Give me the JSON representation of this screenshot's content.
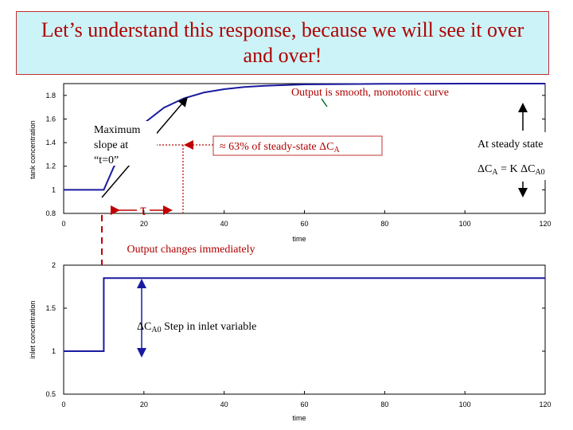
{
  "slide": {
    "title": "Let’s understand this response, because we will see it over and over!"
  },
  "chart_data": [
    {
      "type": "line",
      "xlabel": "time",
      "ylabel": "tank concentration",
      "xlim": [
        0,
        120
      ],
      "ylim": [
        0.8,
        1.9
      ],
      "xticks": [
        "0",
        "20",
        "40",
        "60",
        "80",
        "100",
        "120"
      ],
      "yticks": [
        "0.8",
        "1",
        "1.2",
        "1.4",
        "1.6",
        "1.8"
      ],
      "grid": false,
      "series": [
        {
          "x": [
            0,
            10,
            12.5,
            15,
            20,
            25,
            30,
            35,
            40,
            45,
            50,
            60,
            70,
            80,
            90,
            100,
            110,
            120
          ],
          "y": [
            1.0,
            1.0,
            1.194,
            1.345,
            1.564,
            1.696,
            1.776,
            1.825,
            1.853,
            1.871,
            1.882,
            1.893,
            1.896,
            1.898,
            1.899,
            1.9,
            1.9,
            1.9
          ]
        }
      ],
      "annotations": {
        "smooth": "Output is smooth, monotonic curve",
        "max_slope_1": "Maximum",
        "max_slope_2": "slope at",
        "max_slope_3": "“t=0”",
        "pct63_pre": "≈ 63% of steady-state ",
        "pct63_delta": "ΔC",
        "pct63_sub": "A",
        "steady_1": "At steady state",
        "steady_2_pre": "ΔC",
        "steady_2_sub1": "A",
        "steady_2_mid": " = K ΔC",
        "steady_2_sub2": "A0",
        "tau": "τ",
        "immediate": "Output changes immediately"
      }
    },
    {
      "type": "line",
      "xlabel": "time",
      "ylabel": "inlet concentration",
      "xlim": [
        0,
        120
      ],
      "ylim": [
        0.5,
        2
      ],
      "xticks": [
        "0",
        "20",
        "40",
        "60",
        "80",
        "100",
        "120"
      ],
      "yticks": [
        "0.5",
        "1",
        "1.5",
        "2"
      ],
      "grid": false,
      "series": [
        {
          "x": [
            0,
            10,
            10,
            120
          ],
          "y": [
            1.0,
            1.0,
            1.85,
            1.85
          ]
        }
      ],
      "annotations": {
        "step_pre": "ΔC",
        "step_sub": "A0",
        "step_post": " Step in inlet variable"
      }
    }
  ],
  "colors": {
    "title_bg": "#ccf4f8",
    "title_text": "#b00000",
    "curve": "#1a1aa0",
    "annotation_red": "#b00000",
    "guide_dotted": "#c03030"
  }
}
